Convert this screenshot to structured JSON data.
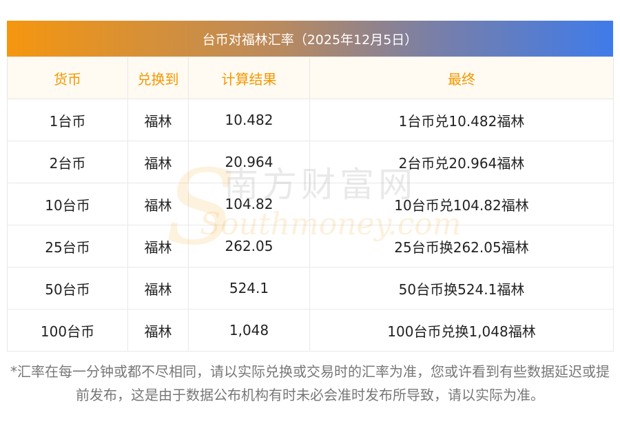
{
  "table": {
    "title": "台币对福林汇率（2025年12月5日）",
    "headers": [
      "货币",
      "兑换到",
      "计算结果",
      "最终"
    ],
    "rows": [
      [
        "1台币",
        "福林",
        "10.482",
        "1台币兑10.482福林"
      ],
      [
        "2台币",
        "福林",
        "20.964",
        "2台币兑20.964福林"
      ],
      [
        "10台币",
        "福林",
        "104.82",
        "10台币兑104.82福林"
      ],
      [
        "25台币",
        "福林",
        "262.05",
        "25台币换262.05福林"
      ],
      [
        "50台币",
        "福林",
        "524.1",
        "50台币换524.1福林"
      ],
      [
        "100台币",
        "福林",
        "1,048",
        "100台币兑换1,048福林"
      ]
    ]
  },
  "watermark": {
    "cn": "南方财富网",
    "en": "Southmoney.com"
  },
  "note": "*汇率在每一分钟或都不尽相同，请以实际兑换或交易时的汇率为准，您或许看到有些数据延迟或提前发布，这是由于数据公布机构有时未必会准时发布所导致，请以实际为准。",
  "colors": {
    "header_text": "#f39800",
    "title_gradient_start": "#f5960f",
    "title_gradient_end": "#3f7bea"
  }
}
